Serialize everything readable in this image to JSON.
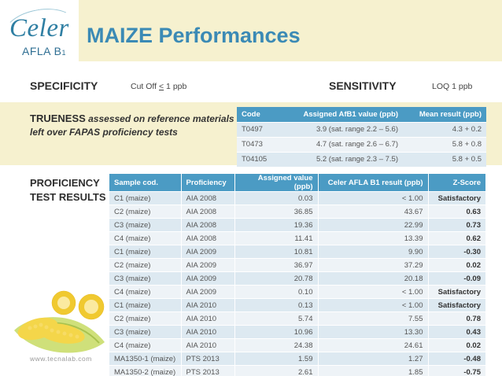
{
  "logo": {
    "brand": "Celer",
    "product": "AFLA B",
    "sub": "1"
  },
  "title": "MAIZE Performances",
  "specificity": {
    "label": "SPECIFICITY",
    "value_prefix": "Cut Off ",
    "value_symbol": "<",
    "value_suffix": " 1 ppb"
  },
  "sensitivity": {
    "label": "SENSITIVITY",
    "value": "LOQ 1 ppb"
  },
  "trueness": {
    "label": "TRUENESS",
    "description": " assessed on reference materials left over FAPAS proficiency tests",
    "headers": [
      "Code",
      "Assigned AfB1 value (ppb)",
      "Mean result (ppb)"
    ],
    "rows": [
      {
        "code": "T0497",
        "assigned": "3.9 (sat. range 2.2 – 5.6)",
        "mean": "4.3 + 0.2"
      },
      {
        "code": "T0473",
        "assigned": "4.7 (sat. range 2.6 – 6.7)",
        "mean": "5.8 + 0.8"
      },
      {
        "code": "T04105",
        "assigned": "5.2 (sat. range 2.3 – 7.5)",
        "mean": "5.8 + 0.5"
      }
    ]
  },
  "proficiency": {
    "label_line1": "PROFICIENCY",
    "label_line2": "TEST RESULTS",
    "headers": [
      "Sample cod.",
      "Proficiency",
      "Assigned value (ppb)",
      "Celer AFLA B1 result (ppb)",
      "Z-Score"
    ],
    "rows": [
      {
        "sample": "C1 (maize)",
        "proficiency": "AIA 2008",
        "assigned": "0.03",
        "result": "< 1.00",
        "zscore": "Satisfactory"
      },
      {
        "sample": "C2 (maize)",
        "proficiency": "AIA 2008",
        "assigned": "36.85",
        "result": "43.67",
        "zscore": "0.63"
      },
      {
        "sample": "C3 (maize)",
        "proficiency": "AIA 2008",
        "assigned": "19.36",
        "result": "22.99",
        "zscore": "0.73"
      },
      {
        "sample": "C4 (maize)",
        "proficiency": "AIA 2008",
        "assigned": "11.41",
        "result": "13.39",
        "zscore": "0.62"
      },
      {
        "sample": "C1 (maize)",
        "proficiency": "AIA 2009",
        "assigned": "10.81",
        "result": "9.90",
        "zscore": "-0.30"
      },
      {
        "sample": "C2 (maize)",
        "proficiency": "AIA 2009",
        "assigned": "36.97",
        "result": "37.29",
        "zscore": "0.02"
      },
      {
        "sample": "C3 (maize)",
        "proficiency": "AIA 2009",
        "assigned": "20.78",
        "result": "20.18",
        "zscore": "-0.09"
      },
      {
        "sample": "C4 (maize)",
        "proficiency": "AIA 2009",
        "assigned": "0.10",
        "result": "< 1.00",
        "zscore": "Satisfactory"
      },
      {
        "sample": "C1 (maize)",
        "proficiency": "AIA 2010",
        "assigned": "0.13",
        "result": "< 1.00",
        "zscore": "Satisfactory"
      },
      {
        "sample": "C2 (maize)",
        "proficiency": "AIA 2010",
        "assigned": "5.74",
        "result": "7.55",
        "zscore": "0.78"
      },
      {
        "sample": "C3 (maize)",
        "proficiency": "AIA 2010",
        "assigned": "10.96",
        "result": "13.30",
        "zscore": "0.43"
      },
      {
        "sample": "C4 (maize)",
        "proficiency": "AIA 2010",
        "assigned": "24.38",
        "result": "24.61",
        "zscore": "0.02"
      },
      {
        "sample": "MA1350-1 (maize)",
        "proficiency": "PTS 2013",
        "assigned": "1.59",
        "result": "1.27",
        "zscore": "-0.48"
      },
      {
        "sample": "MA1350-2 (maize)",
        "proficiency": "PTS 2013",
        "assigned": "2.61",
        "result": "1.85",
        "zscore": "-0.75"
      }
    ]
  },
  "website": "www.tecnalab.com",
  "colors": {
    "accent": "#4b9bc4",
    "band": "#f6f1cf",
    "title": "#3b8ab5"
  }
}
